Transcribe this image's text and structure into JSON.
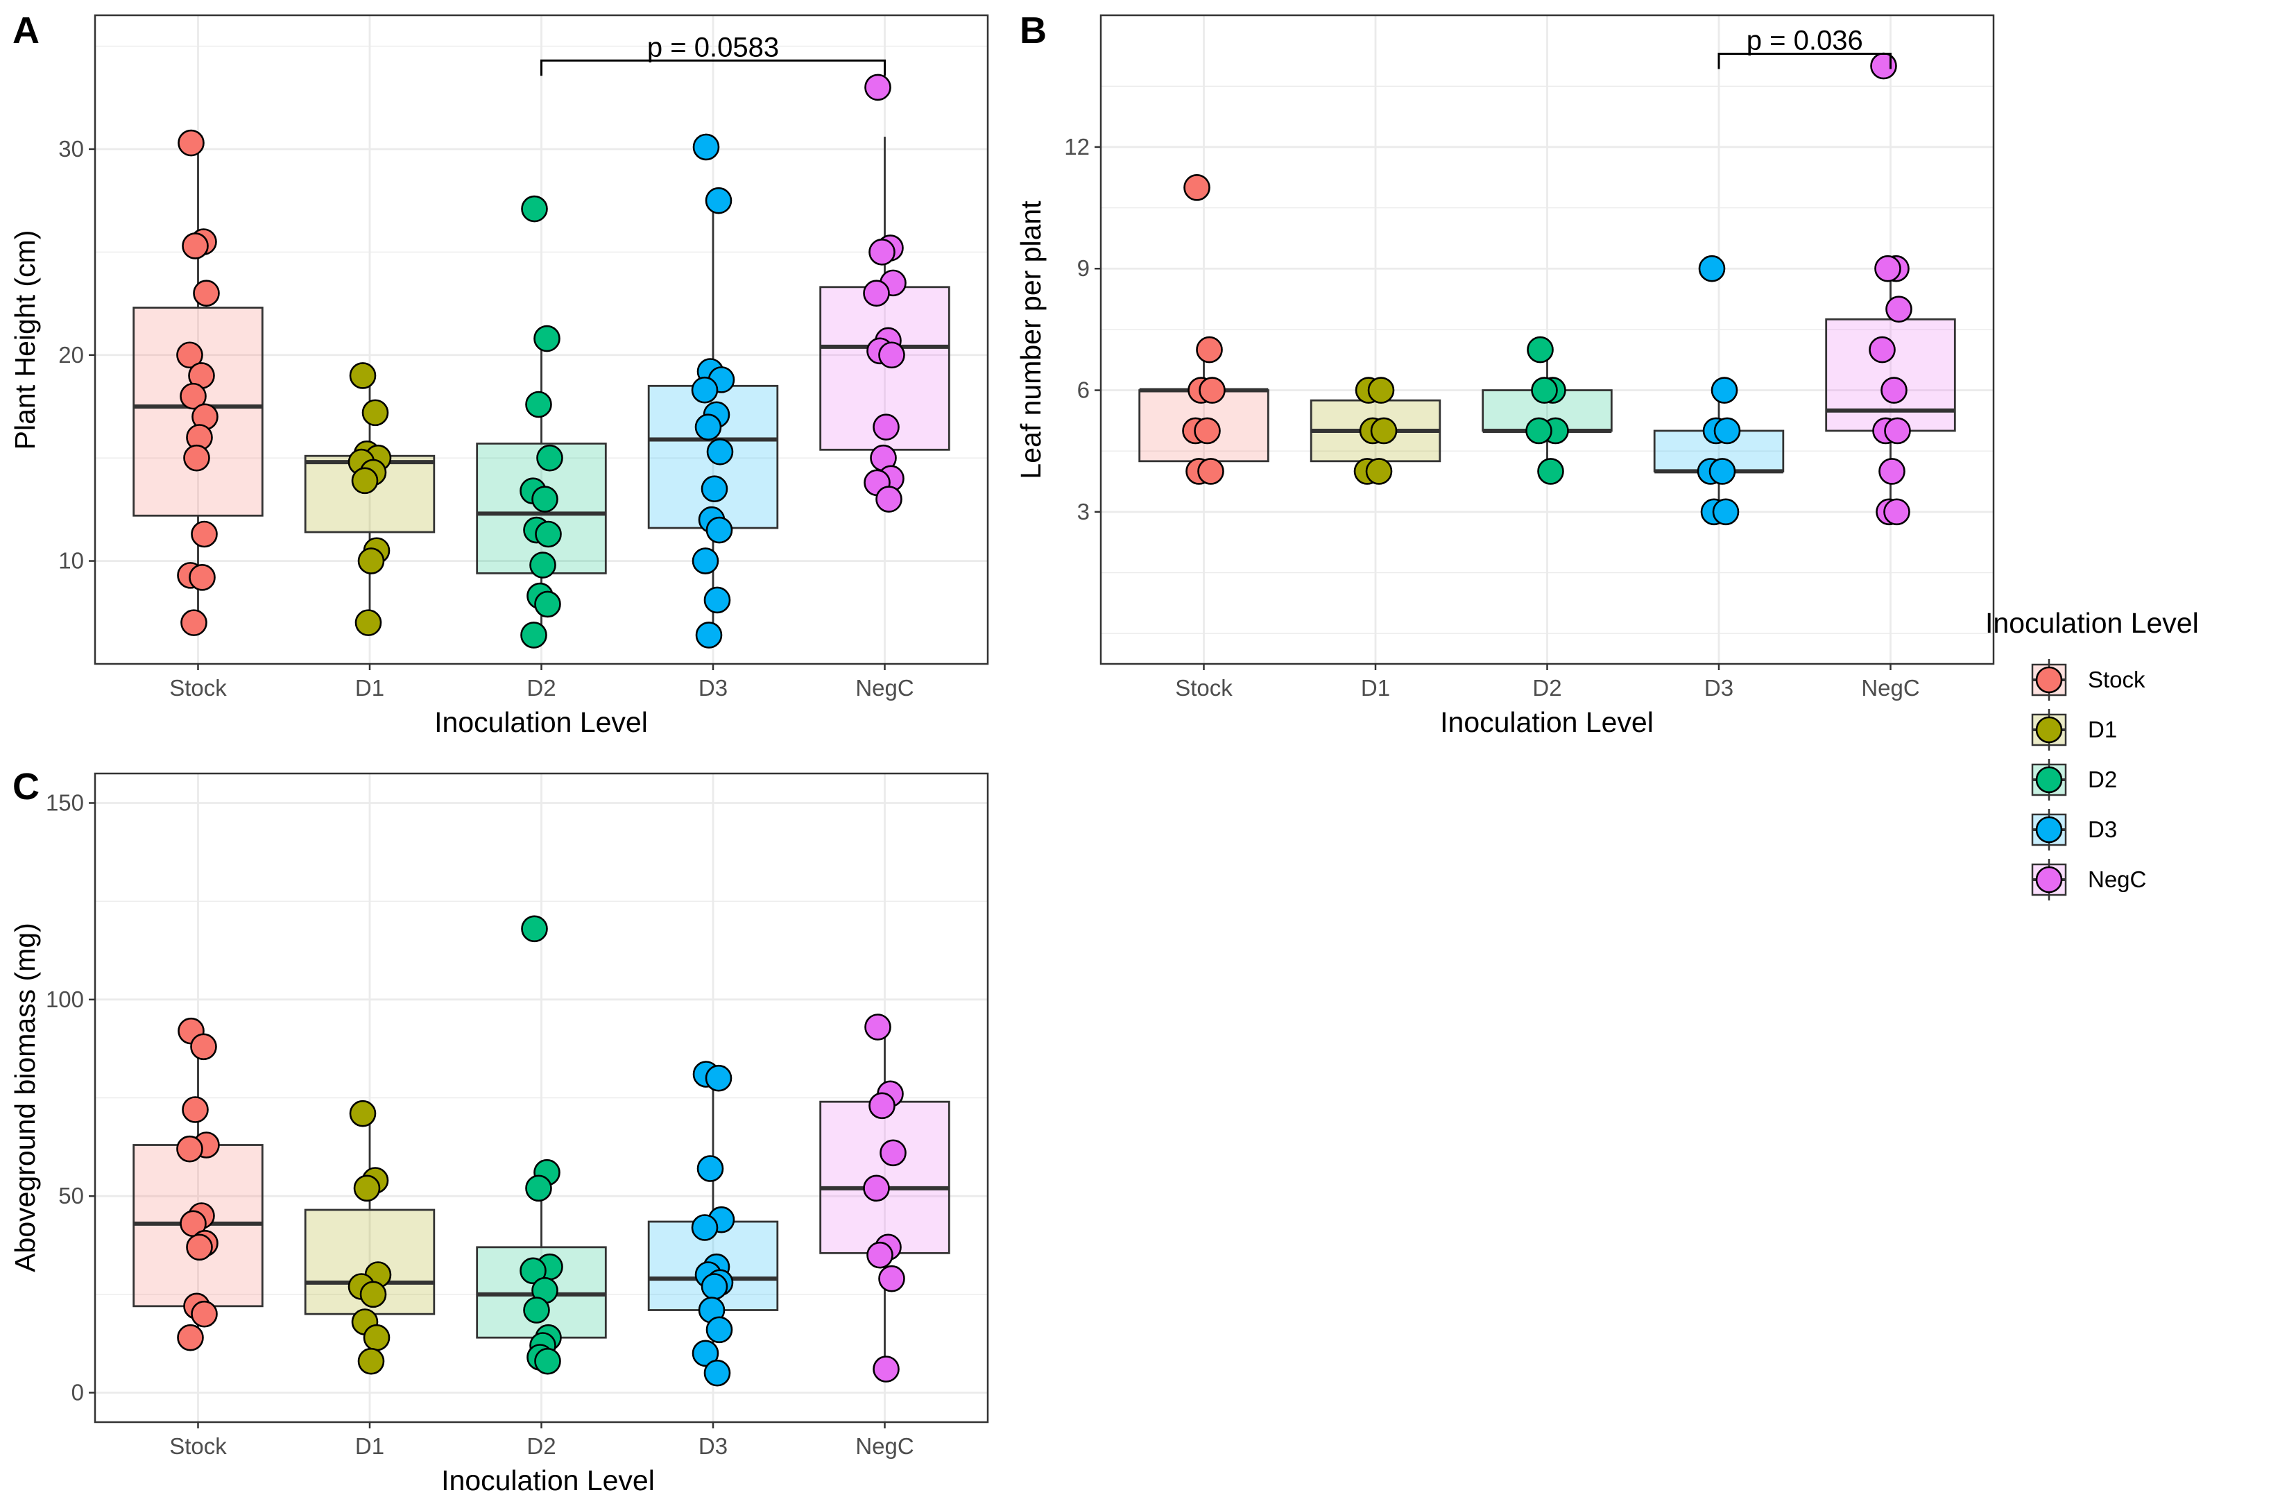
{
  "colors": {
    "Stock": "#F8766D",
    "D1": "#A3A500",
    "D2": "#00BF7D",
    "D3": "#00B0F6",
    "NegC": "#E76BF3",
    "outline": "#000000",
    "grid": "#ebebeb",
    "box_line": "#333333"
  },
  "legend": {
    "title": "Inoculation Level",
    "items": [
      "Stock",
      "D1",
      "D2",
      "D3",
      "NegC"
    ]
  },
  "chart_data": [
    {
      "panel": "A",
      "type": "box",
      "categories": [
        "Stock",
        "D1",
        "D2",
        "D3",
        "NegC"
      ],
      "xlabel": "Inoculation Level",
      "ylabel": "Plant Height (cm)",
      "ylim": [
        5,
        36.5
      ],
      "yticks": [
        10,
        20,
        30
      ],
      "minor_yticks": [
        15,
        25,
        35
      ],
      "boxes": [
        {
          "min": 7,
          "q1": 12.2,
          "median": 17.5,
          "q3": 22.3,
          "max": 30.3
        },
        {
          "min": 7,
          "q1": 11.4,
          "median": 14.8,
          "q3": 15.1,
          "max": 19
        },
        {
          "min": 6.4,
          "q1": 9.4,
          "median": 12.3,
          "q3": 15.7,
          "max": 20.8
        },
        {
          "min": 6.4,
          "q1": 11.6,
          "median": 15.9,
          "q3": 18.5,
          "max": 27.5
        },
        {
          "min": 13,
          "q1": 15.4,
          "median": 20.4,
          "q3": 23.3,
          "max": 30.6
        }
      ],
      "points": [
        [
          30.3,
          25.5,
          25.3,
          23,
          20,
          19,
          18,
          17,
          16,
          15,
          11.3,
          9.3,
          9.2,
          7
        ],
        [
          19,
          17.2,
          15.2,
          15,
          14.8,
          14.3,
          13.9,
          10.5,
          10,
          7
        ],
        [
          27.1,
          20.8,
          17.6,
          15,
          13.4,
          13,
          11.5,
          11.3,
          9.8,
          8.3,
          7.9,
          6.4
        ],
        [
          30.1,
          27.5,
          19.2,
          18.8,
          18.3,
          17.1,
          16.5,
          15.3,
          13.5,
          12,
          11.5,
          10,
          8.1,
          6.4
        ],
        [
          33,
          25.2,
          25,
          23.5,
          23,
          20.7,
          20.2,
          20,
          16.5,
          15,
          14,
          13.8,
          13
        ]
      ],
      "comparison": {
        "from": "D2",
        "to": "NegC",
        "label": "p = 0.0583",
        "y": 34.3
      }
    },
    {
      "panel": "B",
      "type": "box",
      "categories": [
        "Stock",
        "D1",
        "D2",
        "D3",
        "NegC"
      ],
      "xlabel": "Inoculation Level",
      "ylabel": "Leaf number per plant",
      "ylim": [
        -0.75,
        15.25
      ],
      "yticks": [
        3,
        6,
        9,
        12
      ],
      "minor_yticks": [
        0,
        1.5,
        4.5,
        7.5,
        10.5,
        13.5
      ],
      "boxes": [
        {
          "min": 4,
          "q1": 4.25,
          "median": 6,
          "q3": 6,
          "max": 7
        },
        {
          "min": 4,
          "q1": 4.25,
          "median": 5,
          "q3": 5.75,
          "max": 6
        },
        {
          "min": 4,
          "q1": 5,
          "median": 5,
          "q3": 6,
          "max": 7
        },
        {
          "min": 3,
          "q1": 4,
          "median": 4,
          "q3": 5,
          "max": 6
        },
        {
          "min": 3,
          "q1": 5,
          "median": 5.5,
          "q3": 7.75,
          "max": 9
        }
      ],
      "points": [
        [
          11,
          7,
          6,
          6,
          5,
          5,
          4,
          4
        ],
        [
          6,
          6,
          5,
          5,
          4,
          4
        ],
        [
          7,
          6,
          6,
          5,
          5,
          4
        ],
        [
          9,
          6,
          5,
          5,
          4,
          4,
          3,
          3
        ],
        [
          14,
          9,
          9,
          8,
          7,
          6,
          5,
          5,
          4,
          3,
          3
        ]
      ],
      "comparison": {
        "from": "D3",
        "to": "NegC",
        "label": "p = 0.036",
        "y": 14.3
      }
    },
    {
      "panel": "C",
      "type": "box",
      "categories": [
        "Stock",
        "D1",
        "D2",
        "D3",
        "NegC"
      ],
      "xlabel": "Inoculation Level",
      "ylabel": "Aboveground biomass (mg)",
      "ylim": [
        -7.5,
        157.5
      ],
      "yticks": [
        0,
        50,
        100,
        150
      ],
      "minor_yticks": [
        25,
        75,
        125
      ],
      "boxes": [
        {
          "min": 14,
          "q1": 22,
          "median": 43,
          "q3": 63,
          "max": 92
        },
        {
          "min": 8,
          "q1": 20,
          "median": 28,
          "q3": 46.5,
          "max": 71
        },
        {
          "min": 8,
          "q1": 14,
          "median": 25,
          "q3": 37,
          "max": 56
        },
        {
          "min": 5,
          "q1": 21,
          "median": 29,
          "q3": 43.5,
          "max": 81
        },
        {
          "min": 6,
          "q1": 35.5,
          "median": 52,
          "q3": 74,
          "max": 93
        }
      ],
      "points": [
        [
          92,
          88,
          72,
          63,
          62,
          45,
          43,
          38,
          37,
          22,
          20,
          14
        ],
        [
          71,
          54,
          52,
          30,
          27,
          25,
          18,
          14,
          8
        ],
        [
          118,
          56,
          52,
          32,
          31,
          26,
          21,
          14,
          12,
          9,
          8
        ],
        [
          81,
          80,
          57,
          44,
          42,
          32,
          30,
          28,
          27,
          21,
          16,
          10,
          5
        ],
        [
          93,
          76,
          73,
          61,
          52,
          37,
          35,
          29,
          6
        ]
      ]
    }
  ]
}
